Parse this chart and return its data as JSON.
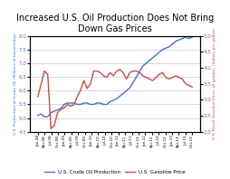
{
  "title": "Increased U.S. Oil Production Does Not Bring\nDown Gas Prices",
  "title_fontsize": 7.0,
  "ylabel_left": "U.S. Production of Crude Oil (Millions of barrels/day)",
  "ylabel_right": "U.S. Retail Gasoline Price, all grades, (dollars per gallon)",
  "ylim_left": [
    4.5,
    8.0
  ],
  "ylim_right": [
    2.0,
    5.0
  ],
  "yticks_left": [
    4.5,
    5.0,
    5.5,
    6.0,
    6.5,
    7.0,
    7.5,
    8.0
  ],
  "yticks_right": [
    2.0,
    2.5,
    3.0,
    3.5,
    4.0,
    4.5,
    5.0
  ],
  "x_labels": [
    "Jan-08",
    "Apr-08",
    "Jul-08",
    "Oct-08",
    "Jan-09",
    "Apr-09",
    "Jul-09",
    "Oct-09",
    "Jan-10",
    "Apr-10",
    "Jul-10",
    "Oct-10",
    "Jan-11",
    "Apr-11",
    "Jul-11",
    "Oct-11",
    "Jan-12",
    "Apr-12",
    "Jul-12",
    "Oct-12",
    "Jan-13",
    "Apr-13",
    "Jul-13",
    "Oct-13"
  ],
  "blue_line": [
    5.1,
    5.15,
    5.05,
    5.05,
    5.2,
    5.25,
    5.3,
    5.35,
    5.5,
    5.55,
    5.55,
    5.55,
    5.5,
    5.5,
    5.55,
    5.55,
    5.5,
    5.5,
    5.55,
    5.55,
    5.5,
    5.5,
    5.6,
    5.65,
    5.7,
    5.8,
    5.9,
    6.0,
    6.1,
    6.3,
    6.5,
    6.7,
    6.9,
    7.0,
    7.1,
    7.2,
    7.3,
    7.4,
    7.5,
    7.55,
    7.6,
    7.7,
    7.8,
    7.85,
    7.9,
    7.95,
    7.9,
    7.95
  ],
  "red_line": [
    3.1,
    3.5,
    3.9,
    3.8,
    2.1,
    2.2,
    2.6,
    2.7,
    2.75,
    2.85,
    2.8,
    2.85,
    3.1,
    3.3,
    3.6,
    3.35,
    3.5,
    3.9,
    3.9,
    3.85,
    3.75,
    3.7,
    3.85,
    3.75,
    3.9,
    3.95,
    3.85,
    3.65,
    3.85,
    3.9,
    3.9,
    3.85,
    3.75,
    3.7,
    3.65,
    3.6,
    3.7,
    3.8,
    3.85,
    3.7,
    3.65,
    3.7,
    3.75,
    3.7,
    3.65,
    3.5,
    3.45,
    3.4
  ],
  "blue_color": "#4472C4",
  "red_color": "#C0504D",
  "background_color": "#FFFFFF",
  "grid_color": "#BBBBBB",
  "legend_blue": "U.S. Crude Oil Production",
  "legend_red": "U.S. Gasoline Price"
}
